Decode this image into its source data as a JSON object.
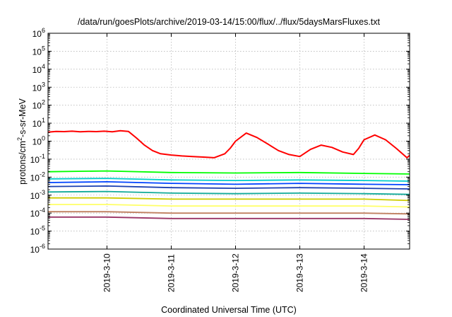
{
  "chart_data": {
    "type": "line",
    "title": "/data/run/goesPlots/archive/2019-03-14/15:00/flux/../flux/5daysMarsFluxes.txt",
    "xlabel": "Coordinated Universal Time (UTC)",
    "ylabel": {
      "base": "protons/cm",
      "sup": "2",
      "rest": "-s-sr-MeV"
    },
    "yscale": "log",
    "ylim": [
      1e-06,
      1000000.0
    ],
    "y_ticks": [
      {
        "value": 1e-06,
        "base": "10",
        "exp": "-6"
      },
      {
        "value": 1e-05,
        "base": "10",
        "exp": "-5"
      },
      {
        "value": 0.0001,
        "base": "10",
        "exp": "-4"
      },
      {
        "value": 0.001,
        "base": "10",
        "exp": "-3"
      },
      {
        "value": 0.01,
        "base": "10",
        "exp": "-2"
      },
      {
        "value": 0.1,
        "base": "10",
        "exp": "-1"
      },
      {
        "value": 1,
        "base": "10",
        "exp": "0"
      },
      {
        "value": 10,
        "base": "10",
        "exp": "1"
      },
      {
        "value": 100,
        "base": "10",
        "exp": "2"
      },
      {
        "value": 1000,
        "base": "10",
        "exp": "3"
      },
      {
        "value": 10000,
        "base": "10",
        "exp": "4"
      },
      {
        "value": 100000,
        "base": "10",
        "exp": "5"
      },
      {
        "value": 1000000,
        "base": "10",
        "exp": "6"
      }
    ],
    "xlim": [
      "2019-03-09 02:00",
      "2019-03-14 17:00"
    ],
    "x_ticks": [
      {
        "value": "2019-03-10",
        "label": "2019-3-10"
      },
      {
        "value": "2019-03-11",
        "label": "2019-3-11"
      },
      {
        "value": "2019-03-12",
        "label": "2019-3-12"
      },
      {
        "value": "2019-03-13",
        "label": "2019-3-13"
      },
      {
        "value": "2019-03-14",
        "label": "2019-3-14"
      }
    ],
    "grid": true,
    "series": [
      {
        "color": "#ff0000",
        "x": [
          "2019-03-09 02:00",
          "2019-03-09 05:00",
          "2019-03-09 08:00",
          "2019-03-09 11:00",
          "2019-03-09 14:00",
          "2019-03-09 17:00",
          "2019-03-09 20:00",
          "2019-03-09 23:00",
          "2019-03-10 02:00",
          "2019-03-10 05:00",
          "2019-03-10 08:00",
          "2019-03-10 11:00",
          "2019-03-10 14:00",
          "2019-03-10 17:00",
          "2019-03-10 20:00",
          "2019-03-11 00:00",
          "2019-03-11 04:00",
          "2019-03-11 08:00",
          "2019-03-11 12:00",
          "2019-03-11 16:00",
          "2019-03-11 20:00",
          "2019-03-11 22:00",
          "2019-03-12 00:00",
          "2019-03-12 04:00",
          "2019-03-12 08:00",
          "2019-03-12 12:00",
          "2019-03-12 16:00",
          "2019-03-12 20:00",
          "2019-03-13 00:00",
          "2019-03-13 04:00",
          "2019-03-13 08:00",
          "2019-03-13 12:00",
          "2019-03-13 16:00",
          "2019-03-13 20:00",
          "2019-03-13 22:00",
          "2019-03-14 00:00",
          "2019-03-14 04:00",
          "2019-03-14 08:00",
          "2019-03-14 12:00",
          "2019-03-14 16:00",
          "2019-03-14 17:00"
        ],
        "y": [
          3.2,
          3.5,
          3.4,
          3.6,
          3.3,
          3.5,
          3.4,
          3.6,
          3.3,
          3.8,
          3.5,
          1.5,
          0.6,
          0.3,
          0.2,
          0.17,
          0.15,
          0.14,
          0.13,
          0.12,
          0.2,
          0.4,
          1.0,
          2.8,
          1.6,
          0.7,
          0.3,
          0.18,
          0.14,
          0.35,
          0.6,
          0.45,
          0.25,
          0.18,
          0.4,
          1.2,
          2.2,
          1.2,
          0.4,
          0.12,
          0.16
        ]
      },
      {
        "color": "#00ff00",
        "x": [
          "2019-03-09 02:00",
          "2019-03-10 00:00",
          "2019-03-11 00:00",
          "2019-03-12 00:00",
          "2019-03-13 00:00",
          "2019-03-14 00:00",
          "2019-03-14 17:00"
        ],
        "y": [
          0.02,
          0.022,
          0.018,
          0.017,
          0.018,
          0.016,
          0.015
        ]
      },
      {
        "color": "#00cccc",
        "x": [
          "2019-03-09 02:00",
          "2019-03-10 00:00",
          "2019-03-11 00:00",
          "2019-03-12 00:00",
          "2019-03-13 00:00",
          "2019-03-14 00:00",
          "2019-03-14 17:00"
        ],
        "y": [
          0.008,
          0.0085,
          0.007,
          0.0065,
          0.007,
          0.0065,
          0.006
        ]
      },
      {
        "color": "#0044ff",
        "x": [
          "2019-03-09 02:00",
          "2019-03-10 00:00",
          "2019-03-11 00:00",
          "2019-03-12 00:00",
          "2019-03-13 00:00",
          "2019-03-14 00:00",
          "2019-03-14 17:00"
        ],
        "y": [
          0.005,
          0.0055,
          0.0045,
          0.004,
          0.0045,
          0.004,
          0.0038
        ]
      },
      {
        "color": "#1a3fb0",
        "x": [
          "2019-03-09 02:00",
          "2019-03-10 00:00",
          "2019-03-11 00:00",
          "2019-03-12 00:00",
          "2019-03-13 00:00",
          "2019-03-14 00:00",
          "2019-03-14 17:00"
        ],
        "y": [
          0.003,
          0.0032,
          0.0026,
          0.0024,
          0.0026,
          0.0024,
          0.0022
        ]
      },
      {
        "color": "#11aa99",
        "x": [
          "2019-03-09 02:00",
          "2019-03-10 00:00",
          "2019-03-11 00:00",
          "2019-03-12 00:00",
          "2019-03-13 00:00",
          "2019-03-14 00:00",
          "2019-03-14 17:00"
        ],
        "y": [
          0.0015,
          0.0016,
          0.0013,
          0.0012,
          0.0013,
          0.0012,
          0.0011
        ]
      },
      {
        "color": "#cccc00",
        "x": [
          "2019-03-09 02:00",
          "2019-03-10 00:00",
          "2019-03-11 00:00",
          "2019-03-12 00:00",
          "2019-03-13 00:00",
          "2019-03-14 00:00",
          "2019-03-14 17:00"
        ],
        "y": [
          0.0007,
          0.0007,
          0.0006,
          0.0006,
          0.0006,
          0.0006,
          0.0005
        ]
      },
      {
        "color": "#ffff66",
        "x": [
          "2019-03-09 02:00",
          "2019-03-10 00:00",
          "2019-03-11 00:00",
          "2019-03-12 00:00",
          "2019-03-13 00:00",
          "2019-03-14 00:00",
          "2019-03-14 17:00"
        ],
        "y": [
          0.0003,
          0.0003,
          0.00025,
          0.00025,
          0.00025,
          0.00025,
          0.00022
        ]
      },
      {
        "color": "#c08060",
        "x": [
          "2019-03-09 02:00",
          "2019-03-10 00:00",
          "2019-03-11 00:00",
          "2019-03-12 00:00",
          "2019-03-13 00:00",
          "2019-03-14 00:00",
          "2019-03-14 17:00"
        ],
        "y": [
          0.00012,
          0.00012,
          0.0001,
          0.0001,
          0.0001,
          0.0001,
          9e-05
        ]
      },
      {
        "color": "#993366",
        "x": [
          "2019-03-09 02:00",
          "2019-03-10 00:00",
          "2019-03-11 00:00",
          "2019-03-12 00:00",
          "2019-03-13 00:00",
          "2019-03-14 00:00",
          "2019-03-14 17:00"
        ],
        "y": [
          6e-05,
          6e-05,
          5e-05,
          5e-05,
          5e-05,
          5e-05,
          4.5e-05
        ]
      }
    ]
  }
}
